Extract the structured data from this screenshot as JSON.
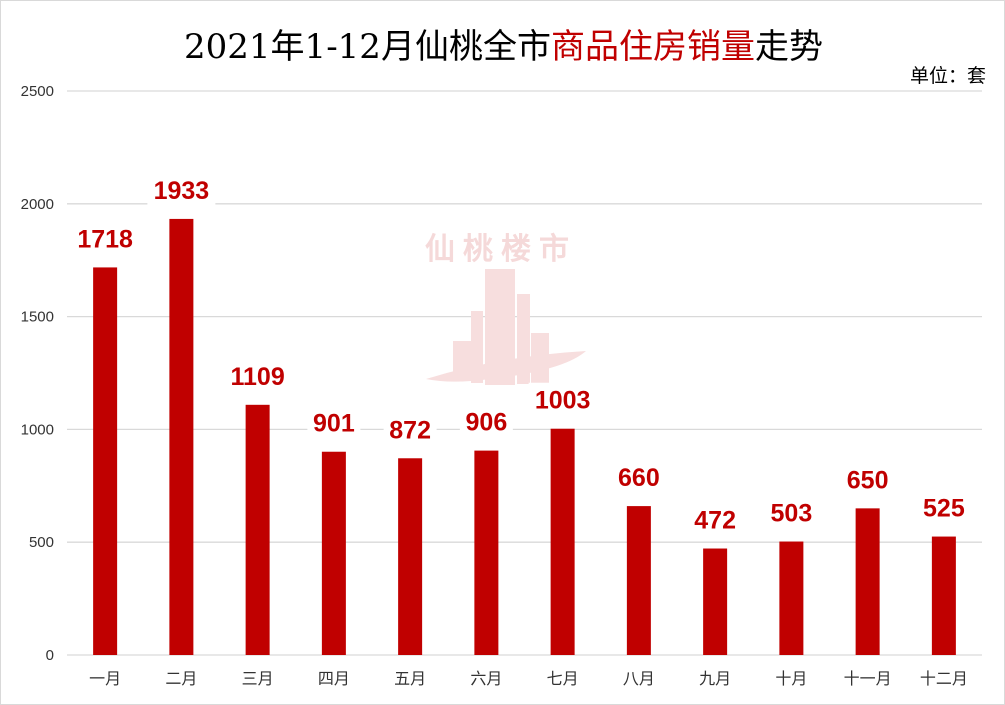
{
  "title": {
    "part1": "2021年1-12月仙桃全市",
    "highlight": "商品住房销量",
    "part2": "走势"
  },
  "unit_label": "单位：套",
  "watermark": "仙桃楼市",
  "colors": {
    "bar": "#c00000",
    "label": "#c00000",
    "grid": "#d9d9d9"
  },
  "chart_data": {
    "type": "bar",
    "title": "2021年1-12月仙桃全市商品住房销量走势",
    "categories": [
      "一月",
      "二月",
      "三月",
      "四月",
      "五月",
      "六月",
      "七月",
      "八月",
      "九月",
      "十月",
      "十一月",
      "十二月"
    ],
    "values": [
      1718,
      1933,
      1109,
      901,
      872,
      906,
      1003,
      660,
      472,
      503,
      650,
      525
    ],
    "ylim": [
      0,
      2500
    ],
    "yticks": [
      0,
      500,
      1000,
      1500,
      2000,
      2500
    ],
    "ylabel": "单位：套",
    "grid": true,
    "legend": "none"
  }
}
